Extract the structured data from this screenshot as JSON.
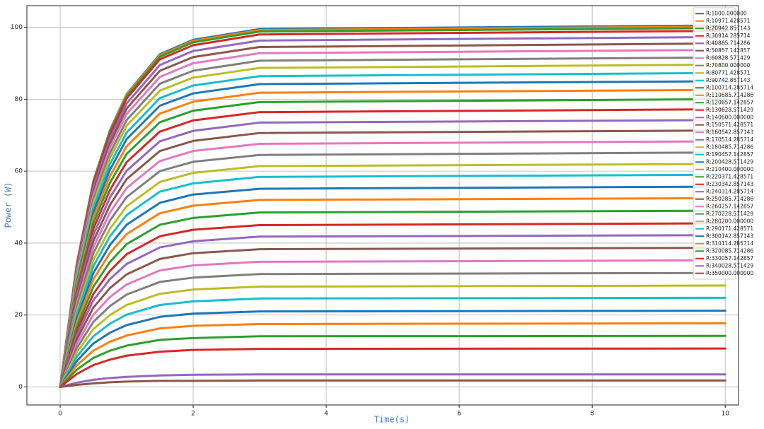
{
  "chart_data": {
    "type": "line",
    "x_label": "Time(s)",
    "y_label": "Power (W)",
    "x": [
      0,
      0.25,
      0.5,
      0.75,
      1,
      1.5,
      2,
      3,
      10
    ],
    "xlim": [
      -0.5,
      10.2
    ],
    "xticks": [
      0,
      2,
      4,
      6,
      8,
      10
    ],
    "ylim": [
      -5,
      106
    ],
    "yticks": [
      0,
      20,
      40,
      60,
      80,
      100
    ],
    "grid": true,
    "legend": "upper right",
    "series": [
      {
        "name": "R:1000.000000",
        "color": "#1f77b4",
        "values": [
          0,
          34.2,
          57.3,
          71.4,
          81.4,
          92.5,
          96.5,
          99.5,
          100.5
        ]
      },
      {
        "name": "R:10971.428571",
        "color": "#ff7f0e",
        "values": [
          0,
          34.1,
          57.1,
          71.1,
          81.2,
          92.2,
          96.2,
          99.2,
          100.2
        ]
      },
      {
        "name": "R:20942.857143",
        "color": "#2ca02c",
        "values": [
          0,
          33.9,
          56.9,
          70.9,
          80.8,
          91.8,
          95.8,
          98.8,
          99.8
        ]
      },
      {
        "name": "R:30914.285714",
        "color": "#d62728",
        "values": [
          0,
          33.7,
          56.4,
          70.3,
          80.2,
          91.1,
          95.0,
          98.0,
          99.0
        ]
      },
      {
        "name": "R:40885.714286",
        "color": "#9467bd",
        "values": [
          0,
          33.1,
          55.5,
          69.1,
          78.8,
          89.5,
          93.4,
          96.3,
          97.3
        ]
      },
      {
        "name": "R:50857.142857",
        "color": "#8c564b",
        "values": [
          0,
          32.5,
          54.4,
          67.8,
          77.4,
          87.9,
          91.7,
          94.5,
          95.5
        ]
      },
      {
        "name": "R:60828.571429",
        "color": "#e377c2",
        "values": [
          0,
          31.9,
          53.4,
          66.5,
          75.9,
          86.2,
          90.0,
          92.8,
          93.7
        ]
      },
      {
        "name": "R:70800.000000",
        "color": "#7f7f7f",
        "values": [
          0,
          31.1,
          52.2,
          65.0,
          74.2,
          84.3,
          87.9,
          90.7,
          91.6
        ]
      },
      {
        "name": "R:80771.428571",
        "color": "#bcbd22",
        "values": [
          0,
          30.5,
          51.1,
          63.6,
          72.6,
          82.4,
          86.0,
          88.7,
          89.6
        ]
      },
      {
        "name": "R:90742.857143",
        "color": "#17becf",
        "values": [
          0,
          29.7,
          49.8,
          62.0,
          70.7,
          80.3,
          83.8,
          86.4,
          87.3
        ]
      },
      {
        "name": "R:100714.285714",
        "color": "#1f77b4",
        "values": [
          0,
          28.9,
          48.5,
          60.4,
          68.9,
          78.2,
          81.6,
          84.2,
          85.0
        ]
      },
      {
        "name": "R:110685.714286",
        "color": "#ff7f0e",
        "values": [
          0,
          28.1,
          47.1,
          58.6,
          66.9,
          76.0,
          79.3,
          81.8,
          82.6
        ]
      },
      {
        "name": "R:120657.142857",
        "color": "#2ca02c",
        "values": [
          0,
          27.2,
          45.6,
          56.8,
          64.8,
          73.6,
          76.8,
          79.2,
          80.0
        ]
      },
      {
        "name": "R:130628.571429",
        "color": "#d62728",
        "values": [
          0,
          26.2,
          44.0,
          54.8,
          62.5,
          71.0,
          74.1,
          76.4,
          77.2
        ]
      },
      {
        "name": "R:140600.000000",
        "color": "#9467bd",
        "values": [
          0,
          25.2,
          42.3,
          52.7,
          60.1,
          68.3,
          71.2,
          73.5,
          74.2
        ]
      },
      {
        "name": "R:150571.428571",
        "color": "#8c564b",
        "values": [
          0,
          24.2,
          40.6,
          50.6,
          57.8,
          65.6,
          68.4,
          70.6,
          71.3
        ]
      },
      {
        "name": "R:160542.857143",
        "color": "#e377c2",
        "values": [
          0,
          23.2,
          38.9,
          48.5,
          55.3,
          62.8,
          65.6,
          67.6,
          68.3
        ]
      },
      {
        "name": "R:170514.285714",
        "color": "#7f7f7f",
        "values": [
          0,
          22.2,
          37.2,
          46.3,
          52.8,
          60.0,
          62.6,
          64.5,
          65.2
        ]
      },
      {
        "name": "R:180485.714286",
        "color": "#bcbd22",
        "values": [
          0,
          21.1,
          35.3,
          44.0,
          50.2,
          57.0,
          59.5,
          61.4,
          62.0
        ]
      },
      {
        "name": "R:190457.142857",
        "color": "#17becf",
        "values": [
          0,
          20.1,
          33.6,
          41.9,
          47.8,
          54.3,
          56.6,
          58.4,
          59.0
        ]
      },
      {
        "name": "R:200428.571429",
        "color": "#1f77b4",
        "values": [
          0,
          18.9,
          31.7,
          39.5,
          45.1,
          51.2,
          53.5,
          55.1,
          55.7
        ]
      },
      {
        "name": "R:210400.000000",
        "color": "#ff7f0e",
        "values": [
          0,
          17.9,
          29.9,
          37.3,
          42.5,
          48.3,
          50.4,
          52.0,
          52.5
        ]
      },
      {
        "name": "R:220371.428571",
        "color": "#2ca02c",
        "values": [
          0,
          16.7,
          27.9,
          34.8,
          39.7,
          45.1,
          47.0,
          48.5,
          49.0
        ]
      },
      {
        "name": "R:230342.857143",
        "color": "#d62728",
        "values": [
          0,
          15.5,
          25.9,
          32.3,
          36.9,
          41.9,
          43.7,
          45.0,
          45.5
        ]
      },
      {
        "name": "R:240314.285714",
        "color": "#9467bd",
        "values": [
          0,
          14.3,
          24.1,
          30.0,
          34.2,
          38.8,
          40.5,
          41.8,
          42.2
        ]
      },
      {
        "name": "R:250285.714286",
        "color": "#8c564b",
        "values": [
          0,
          13.2,
          22.1,
          27.5,
          31.3,
          35.6,
          37.2,
          38.3,
          38.7
        ]
      },
      {
        "name": "R:260257.142857",
        "color": "#e377c2",
        "values": [
          0,
          12.0,
          20.1,
          25.0,
          28.5,
          32.4,
          33.8,
          34.8,
          35.2
        ]
      },
      {
        "name": "R:270228.571429",
        "color": "#7f7f7f",
        "values": [
          0,
          10.8,
          18.1,
          22.5,
          25.7,
          29.2,
          30.4,
          31.4,
          31.7
        ]
      },
      {
        "name": "R:280200.000000",
        "color": "#bcbd22",
        "values": [
          0,
          9.6,
          16.1,
          20.0,
          22.8,
          25.9,
          27.1,
          27.9,
          28.2
        ]
      },
      {
        "name": "R:290171.428571",
        "color": "#17becf",
        "values": [
          0,
          8.4,
          14.1,
          17.6,
          20.1,
          22.8,
          23.8,
          24.6,
          24.8
        ]
      },
      {
        "name": "R:300142.857143",
        "color": "#1f77b4",
        "values": [
          0,
          7.2,
          12.1,
          15.1,
          17.2,
          19.5,
          20.4,
          21.0,
          21.2
        ]
      },
      {
        "name": "R:310114.285714",
        "color": "#ff7f0e",
        "values": [
          0,
          6.0,
          10.1,
          12.6,
          14.3,
          16.3,
          17.0,
          17.5,
          17.7
        ]
      },
      {
        "name": "R:320085.714286",
        "color": "#2ca02c",
        "values": [
          0,
          4.8,
          8.1,
          10.1,
          11.5,
          13.1,
          13.6,
          14.1,
          14.2
        ]
      },
      {
        "name": "R:330057.142857",
        "color": "#d62728",
        "values": [
          0,
          3.6,
          6.1,
          7.6,
          8.7,
          9.8,
          10.3,
          10.6,
          10.7
        ]
      },
      {
        "name": "R:340028.571429",
        "color": "#9467bd",
        "values": [
          0,
          1.2,
          2.0,
          2.5,
          2.8,
          3.2,
          3.4,
          3.5,
          3.5
        ]
      },
      {
        "name": "R:350000.000000",
        "color": "#8c564b",
        "values": [
          0,
          0.6,
          1.0,
          1.3,
          1.5,
          1.7,
          1.7,
          1.8,
          1.8
        ]
      }
    ]
  }
}
